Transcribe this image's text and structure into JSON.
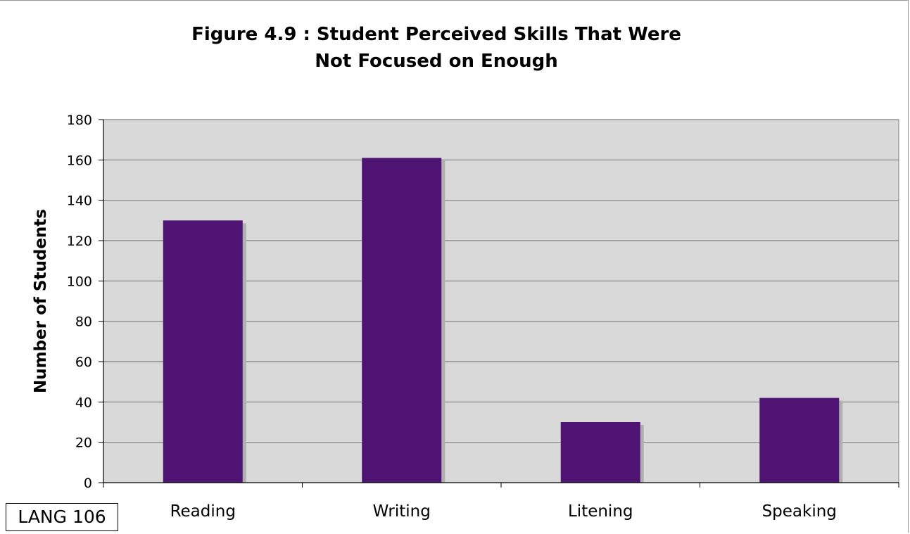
{
  "chart_data": {
    "type": "bar",
    "title_lines": [
      "Figure 4.9 : Student Perceived Skills That Were",
      "Not Focused on Enough"
    ],
    "categories": [
      "Reading",
      "Writing",
      "Litening",
      "Speaking"
    ],
    "values": [
      130,
      161,
      30,
      42
    ],
    "xlabel": "",
    "ylabel": "Number of Students",
    "ylim": [
      0,
      180
    ],
    "yticks": [
      0,
      20,
      40,
      60,
      80,
      100,
      120,
      140,
      160,
      180
    ],
    "grid": true,
    "legend": "none"
  },
  "colors": {
    "bar": "#4e1373",
    "bar_shadow": "#b0b0b0",
    "plot_background": "#d9d9d9",
    "gridline": "#7f7f7f"
  },
  "code_box_label": "LANG 106"
}
